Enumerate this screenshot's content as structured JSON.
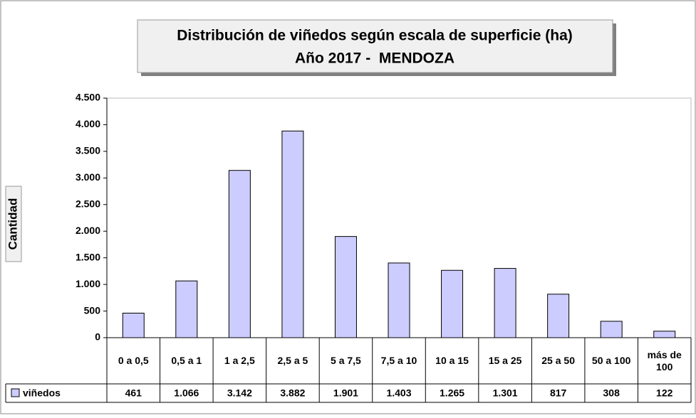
{
  "chart_data": {
    "type": "bar",
    "title": "Distribución de viñedos según escala de superficie (ha)",
    "subtitle": "Año 2017 -  MENDOZA",
    "y_label": "Cantidad",
    "categories": [
      "0 a 0,5",
      "0,5 a 1",
      "1 a 2,5",
      "2,5 a 5",
      "5 a 7,5",
      "7,5 a 10",
      "10 a 15",
      "15 a 25",
      "25 a 50",
      "50 a 100",
      "más de 100"
    ],
    "series": [
      {
        "name": "viñedos",
        "color": "#ccccff",
        "values": [
          461,
          1066,
          3142,
          3882,
          1901,
          1403,
          1265,
          1301,
          817,
          308,
          122
        ],
        "value_labels": [
          "461",
          "1.066",
          "3.142",
          "3.882",
          "1.901",
          "1.403",
          "1.265",
          "1.301",
          "817",
          "308",
          "122"
        ]
      }
    ],
    "ylim": [
      0,
      4500
    ],
    "yticks": [
      0,
      500,
      {
        "value": 1000,
        "label": "1.000"
      },
      {
        "value": 1500,
        "label": "1.500"
      },
      {
        "value": 2000,
        "label": "2.000"
      },
      {
        "value": 2500,
        "label": "2.500"
      },
      {
        "value": 3000,
        "label": "3.000"
      },
      {
        "value": 3500,
        "label": "3.500"
      },
      {
        "value": 4000,
        "label": "4.000"
      },
      {
        "value": 4500,
        "label": "4.500"
      }
    ],
    "grid": false
  }
}
